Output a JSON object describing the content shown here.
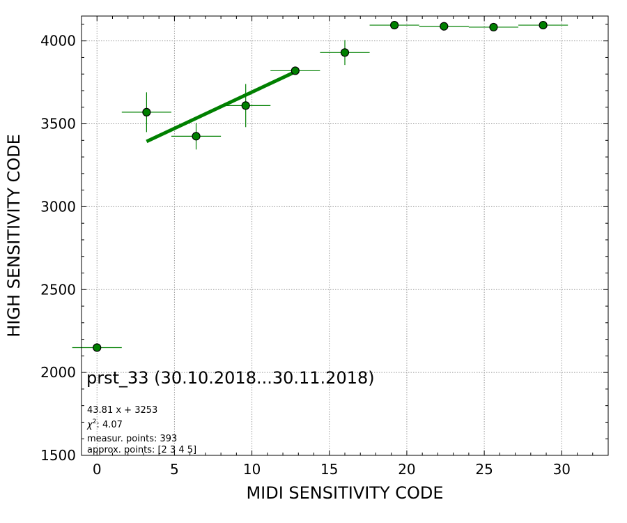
{
  "chart_data": {
    "type": "scatter",
    "xlabel": "MIDI SENSITIVITY CODE",
    "ylabel": "HIGH SENSITIVITY CODE",
    "xlim": [
      -1,
      33
    ],
    "ylim": [
      1500,
      4150
    ],
    "xticks": [
      0,
      5,
      10,
      15,
      20,
      25,
      30
    ],
    "yticks": [
      1500,
      2000,
      2500,
      3000,
      3500,
      4000
    ],
    "grid": true,
    "series": [
      {
        "color": "#008000",
        "points": [
          {
            "x": 0,
            "y": 2150,
            "xerr": 1.6,
            "yerr": 0
          },
          {
            "x": 3.2,
            "y": 3570,
            "xerr": 1.6,
            "yerr": 120
          },
          {
            "x": 6.4,
            "y": 3425,
            "xerr": 1.6,
            "yerr": 80
          },
          {
            "x": 9.6,
            "y": 3610,
            "xerr": 1.6,
            "yerr": 130
          },
          {
            "x": 12.8,
            "y": 3820,
            "xerr": 1.6,
            "yerr": 0
          },
          {
            "x": 16.0,
            "y": 3930,
            "xerr": 1.6,
            "yerr": 75
          },
          {
            "x": 19.2,
            "y": 4095,
            "xerr": 1.6,
            "yerr": 0
          },
          {
            "x": 22.4,
            "y": 4088,
            "xerr": 1.6,
            "yerr": 0
          },
          {
            "x": 25.6,
            "y": 4083,
            "xerr": 1.6,
            "yerr": 0
          },
          {
            "x": 28.8,
            "y": 4095,
            "xerr": 1.6,
            "yerr": 0
          }
        ]
      }
    ],
    "fit_line": {
      "slope": 43.81,
      "intercept": 3253,
      "x_range": [
        3.2,
        12.8
      ],
      "color": "#008000"
    },
    "annotations": {
      "title": "prst_33 (30.10.2018...30.11.2018)",
      "fit_text": "43.81 x + 3253",
      "chi2_prefix": "χ",
      "chi2_sup": "2",
      "chi2_value": ": 4.07",
      "measur_points": "measur. points: 393",
      "approx_points": "approx. points: [2 3 4 5]"
    }
  }
}
